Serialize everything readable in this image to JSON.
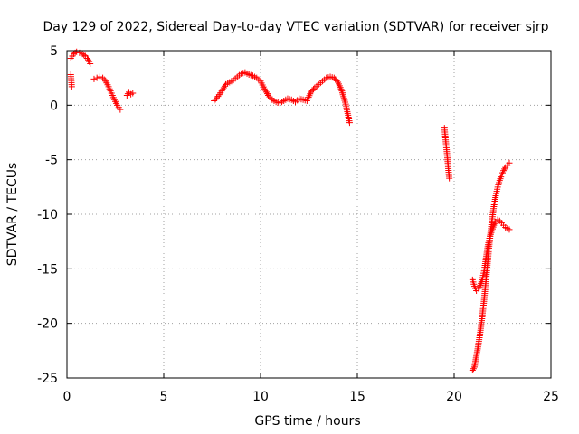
{
  "chart_data": {
    "type": "scatter",
    "title": "Day 129 of 2022, Sidereal Day-to-day VTEC variation (SDTVAR) for receiver sjrp",
    "xlabel": "GPS time / hours",
    "ylabel": "SDTVAR / TECUs",
    "xlim": [
      0,
      25
    ],
    "ylim": [
      -25,
      5
    ],
    "xticks": [
      "0",
      "5",
      "10",
      "15",
      "20",
      "25"
    ],
    "yticks": [
      "5",
      "0",
      "-5",
      "-10",
      "-15",
      "-20",
      "-25"
    ],
    "grid": true,
    "marker": "plus",
    "color": "#ff0000",
    "segments": [
      {
        "x": [
          0.2,
          0.35,
          0.5,
          0.65,
          0.8,
          0.95,
          1.05,
          1.15,
          1.2
        ],
        "y": [
          4.3,
          4.7,
          4.9,
          4.8,
          4.7,
          4.5,
          4.3,
          4.0,
          3.8
        ]
      },
      {
        "x": [
          0.2,
          0.25
        ],
        "y": [
          2.8,
          1.7
        ]
      },
      {
        "x": [
          1.4,
          1.55,
          1.7,
          1.85,
          2.0,
          2.15,
          2.3,
          2.45,
          2.6,
          2.75
        ],
        "y": [
          2.4,
          2.5,
          2.6,
          2.5,
          2.2,
          1.7,
          1.1,
          0.5,
          0.0,
          -0.4
        ]
      },
      {
        "x": [
          3.1,
          3.2,
          3.3,
          3.4
        ],
        "y": [
          0.9,
          1.2,
          1.0,
          1.1
        ]
      },
      {
        "x": [
          7.6,
          7.8,
          8.0,
          8.2,
          8.4,
          8.6,
          8.8,
          9.0,
          9.2,
          9.4,
          9.6,
          9.8,
          10.0,
          10.2,
          10.4,
          10.6,
          10.8,
          11.0,
          11.2,
          11.4,
          11.6,
          11.8,
          12.0,
          12.2,
          12.4,
          12.6,
          12.8,
          13.0,
          13.2,
          13.4,
          13.6,
          13.8,
          14.0,
          14.2,
          14.4,
          14.6
        ],
        "y": [
          0.4,
          0.8,
          1.3,
          1.9,
          2.1,
          2.3,
          2.6,
          2.9,
          3.0,
          2.8,
          2.7,
          2.5,
          2.2,
          1.5,
          0.9,
          0.5,
          0.3,
          0.2,
          0.4,
          0.6,
          0.5,
          0.3,
          0.6,
          0.5,
          0.4,
          1.2,
          1.6,
          1.9,
          2.2,
          2.5,
          2.6,
          2.5,
          2.1,
          1.3,
          0.1,
          -1.6
        ]
      },
      {
        "x": [
          19.5,
          19.55,
          19.6,
          19.65,
          19.7,
          19.75
        ],
        "y": [
          -2.1,
          -3.0,
          -3.9,
          -4.8,
          -5.8,
          -6.7
        ]
      },
      {
        "x": [
          20.95,
          21.05,
          21.15,
          21.25,
          21.35,
          21.45,
          21.55,
          21.65,
          21.75,
          21.85,
          21.95,
          22.05,
          22.15,
          22.25,
          22.35,
          22.45,
          22.55,
          22.65,
          22.75,
          22.85
        ],
        "y": [
          -24.3,
          -24.0,
          -23.0,
          -22.0,
          -20.8,
          -19.4,
          -17.8,
          -16.0,
          -14.0,
          -12.2,
          -10.6,
          -9.3,
          -8.3,
          -7.5,
          -6.9,
          -6.4,
          -6.0,
          -5.7,
          -5.5,
          -5.3
        ]
      },
      {
        "x": [
          20.95,
          21.05,
          21.15,
          21.25,
          21.35,
          21.45,
          21.55,
          21.65,
          21.75,
          21.85,
          21.95,
          22.05,
          22.15,
          22.25,
          22.35,
          22.45,
          22.55,
          22.65,
          22.75,
          22.85
        ],
        "y": [
          -16.0,
          -16.6,
          -17.0,
          -16.8,
          -16.5,
          -16.0,
          -15.2,
          -14.0,
          -12.8,
          -12.0,
          -11.5,
          -11.0,
          -10.7,
          -10.5,
          -10.6,
          -10.8,
          -11.0,
          -11.2,
          -11.3,
          -11.4
        ]
      }
    ]
  }
}
